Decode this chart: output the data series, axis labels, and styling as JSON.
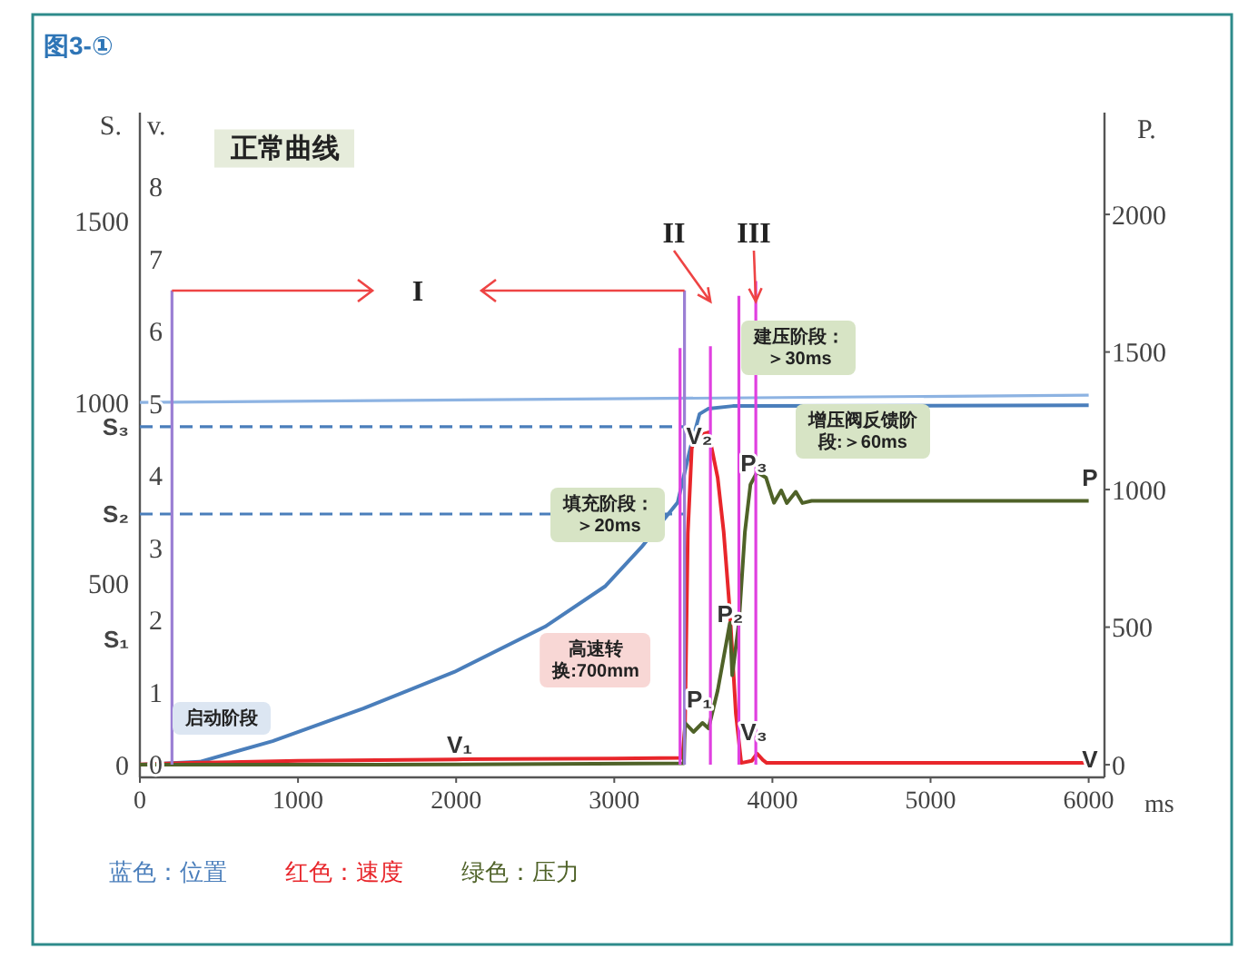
{
  "chart_data": {
    "type": "line",
    "title": "图3-①",
    "subtitle": "正常曲线",
    "xlabel": "ms",
    "ylabel": "S.",
    "y3label": "v.",
    "y2label": "P.",
    "xlim": [
      0,
      6100
    ],
    "xticks": [
      0,
      1000,
      2000,
      3000,
      4000,
      5000,
      6000
    ],
    "ylim": [
      -35,
      1800
    ],
    "yticks": [
      0,
      {
        "value": 346,
        "label": "S₁"
      },
      500,
      {
        "value": 692,
        "label": "S₂"
      },
      {
        "value": 933,
        "label": "S₃"
      },
      1000,
      1500
    ],
    "y3lim": [
      -0.18,
      9.03
    ],
    "y3ticks": [
      0,
      1,
      2,
      3,
      4,
      5,
      6,
      7,
      8
    ],
    "y2lim": [
      -46,
      2370
    ],
    "y2ticks": [
      0,
      500,
      1000,
      1500,
      2000
    ],
    "grid": false,
    "legend": "bottom",
    "series": [
      {
        "name": "蓝色：位置",
        "color": "#4a7ebb",
        "x": [
          0,
          379,
          839,
          1413,
          1988,
          2562,
          2941,
          3171,
          3401,
          3481,
          3539,
          3596,
          3750,
          6000
        ],
        "values": [
          0,
          8,
          65,
          155,
          256,
          381,
          492,
          600,
          724,
          874,
          968,
          983,
          990,
          992
        ]
      },
      {
        "name": "红色：速度",
        "color": "#e8262b",
        "axis": "y3",
        "x": [
          0,
          300,
          1000,
          2000,
          3000,
          3430,
          3447,
          3465,
          3490,
          3520,
          3596,
          3654,
          3692,
          3731,
          3769,
          3803,
          3870,
          3903,
          3940,
          3964,
          6000
        ],
        "values": [
          0,
          0.02,
          0.05,
          0.07,
          0.08,
          0.09,
          0.5,
          3.2,
          4.38,
          4.55,
          4.6,
          3.97,
          3.22,
          2.12,
          0.7,
          0.02,
          0.05,
          0.15,
          0.06,
          0.02,
          0.02
        ]
      },
      {
        "name": "绿色：压力",
        "color": "#4f6228",
        "axis": "y2",
        "x": [
          0,
          1500,
          3440,
          3447,
          3501,
          3558,
          3596,
          3654,
          3731,
          3746,
          3788,
          3826,
          3861,
          3903,
          3960,
          4010,
          4056,
          4091,
          4148,
          4190,
          4248,
          6000
        ],
        "values": [
          0,
          0,
          5,
          152,
          119,
          152,
          132,
          270,
          515,
          325,
          515,
          845,
          1018,
          1063,
          1043,
          952,
          997,
          951,
          992,
          951,
          959,
          959
        ]
      },
      {
        "color": "#8db3e2",
        "x": [
          0,
          6000
        ],
        "values": [
          1000,
          1020
        ]
      },
      {
        "color": "#4a7ebb",
        "line_style": "dashed",
        "x": [
          0,
          3470
        ],
        "values": [
          933,
          933
        ]
      },
      {
        "color": "#4a7ebb",
        "line_style": "dashed",
        "x": [
          0,
          3440
        ],
        "values": [
          692,
          692
        ]
      },
      {
        "color": "#9b7fd4",
        "x": [
          203,
          203
        ],
        "values": [
          0,
          1309
        ]
      },
      {
        "color": "#9b7fd4",
        "x": [
          3444,
          3444
        ],
        "values": [
          0,
          1309
        ]
      },
      {
        "color": "#e040e0",
        "x": [
          3416,
          3416
        ],
        "values": [
          0,
          1150
        ]
      },
      {
        "color": "#e040e0",
        "x": [
          3608,
          3608
        ],
        "values": [
          0,
          1155
        ]
      },
      {
        "color": "#e040e0",
        "x": [
          3788,
          3788
        ],
        "values": [
          0,
          1294
        ]
      },
      {
        "color": "#e040e0",
        "x": [
          3895,
          3895
        ],
        "values": [
          0,
          1335
        ]
      }
    ],
    "annotations": [
      "启动阶段",
      "高速转换:700mm",
      "填充阶段：＞20ms",
      "建压阶段：＞30ms",
      "增压阀反馈阶段:＞60ms",
      "I",
      "II",
      "III",
      "V₁",
      "V₂",
      "V₃",
      "P₁",
      "P₂",
      "P₃",
      "P",
      "V"
    ]
  }
}
